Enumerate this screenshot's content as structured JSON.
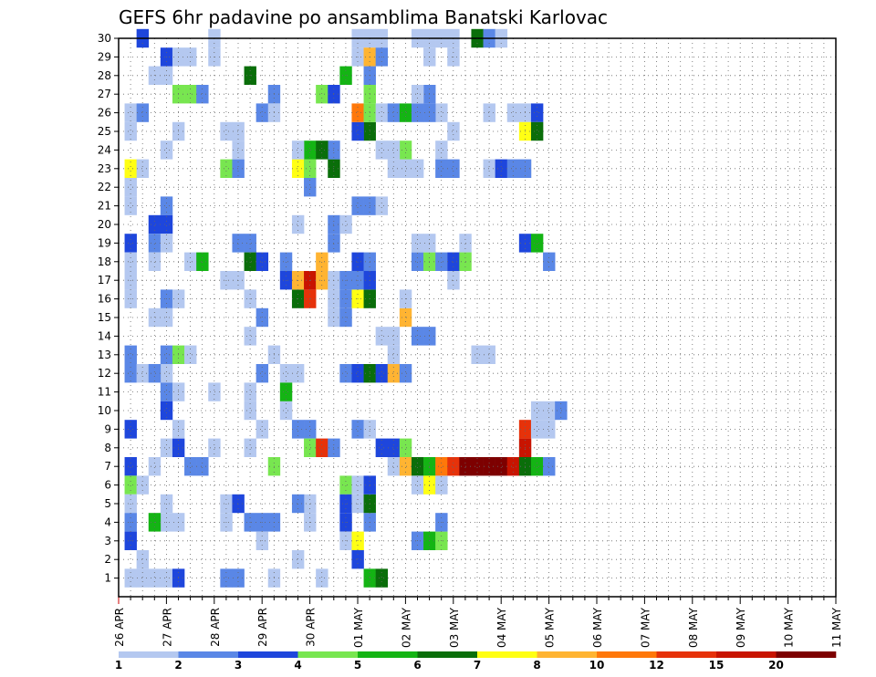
{
  "chart_data": {
    "type": "heatmap",
    "title": "GEFS 6hr padavine po ansamblima Banatski Karlovac",
    "xlabel": "",
    "ylabel": "",
    "x_tick_labels": [
      "26 APR",
      "27 APR",
      "28 APR",
      "29 APR",
      "30 APR",
      "01 MAY",
      "02 MAY",
      "03 MAY",
      "04 MAY",
      "05 MAY",
      "06 MAY",
      "07 MAY",
      "08 MAY",
      "09 MAY",
      "10 MAY",
      "11 MAY"
    ],
    "x_steps_per_day": 4,
    "x_total_steps": 60,
    "y_members": [
      1,
      2,
      3,
      4,
      5,
      6,
      7,
      8,
      9,
      10,
      11,
      12,
      13,
      14,
      15,
      16,
      17,
      18,
      19,
      20,
      21,
      22,
      23,
      24,
      25,
      26,
      27,
      28,
      29,
      30
    ],
    "grid": true,
    "colorbar": {
      "levels": [
        1,
        2,
        3,
        4,
        5,
        6,
        7,
        8,
        10,
        12,
        15,
        20
      ],
      "labels": [
        "1",
        "2",
        "3",
        "4",
        "5",
        "6",
        "7",
        "8",
        "10",
        "12",
        "15",
        "20"
      ],
      "colors": [
        "#b4c8f0",
        "#5a87e6",
        "#1e46dc",
        "#78e650",
        "#14b414",
        "#0a6e0a",
        "#ffff14",
        "#ffb432",
        "#ff780a",
        "#e6320a",
        "#c81400",
        "#7d0000"
      ],
      "placement": "bottom"
    },
    "cells": [
      [
        2,
        1,
        0
      ],
      [
        2,
        30,
        2
      ],
      [
        1,
        25,
        0
      ],
      [
        1,
        26,
        0
      ],
      [
        2,
        26,
        1
      ],
      [
        1,
        21,
        0
      ],
      [
        1,
        22,
        0
      ],
      [
        1,
        23,
        6
      ],
      [
        2,
        23,
        0
      ],
      [
        1,
        19,
        2
      ],
      [
        1,
        18,
        0
      ],
      [
        1,
        17,
        0
      ],
      [
        1,
        16,
        0
      ],
      [
        1,
        13,
        1
      ],
      [
        1,
        12,
        1
      ],
      [
        2,
        12,
        0
      ],
      [
        1,
        9,
        2
      ],
      [
        1,
        7,
        2
      ],
      [
        1,
        6,
        3
      ],
      [
        2,
        6,
        0
      ],
      [
        1,
        5,
        0
      ],
      [
        1,
        4,
        1
      ],
      [
        1,
        3,
        2
      ],
      [
        2,
        2,
        0
      ],
      [
        1,
        1,
        0
      ],
      [
        3,
        1,
        0
      ],
      [
        3,
        28,
        0
      ],
      [
        4,
        28,
        0
      ],
      [
        4,
        29,
        2
      ],
      [
        5,
        29,
        0
      ],
      [
        6,
        29,
        0
      ],
      [
        4,
        24,
        0
      ],
      [
        4,
        21,
        1
      ],
      [
        3,
        20,
        2
      ],
      [
        4,
        20,
        2
      ],
      [
        3,
        19,
        1
      ],
      [
        4,
        19,
        0
      ],
      [
        3,
        18,
        0
      ],
      [
        3,
        15,
        0
      ],
      [
        4,
        15,
        0
      ],
      [
        4,
        16,
        1
      ],
      [
        5,
        16,
        0
      ],
      [
        4,
        13,
        1
      ],
      [
        5,
        13,
        3
      ],
      [
        4,
        12,
        0
      ],
      [
        3,
        12,
        1
      ],
      [
        4,
        11,
        1
      ],
      [
        5,
        11,
        0
      ],
      [
        4,
        10,
        2
      ],
      [
        4,
        8,
        0
      ],
      [
        5,
        8,
        2
      ],
      [
        3,
        7,
        0
      ],
      [
        4,
        4,
        0
      ],
      [
        3,
        4,
        4
      ],
      [
        4,
        5,
        0
      ],
      [
        5,
        4,
        0
      ],
      [
        4,
        1,
        0
      ],
      [
        5,
        1,
        2
      ],
      [
        5,
        27,
        3
      ],
      [
        6,
        27,
        3
      ],
      [
        7,
        27,
        1
      ],
      [
        5,
        25,
        0
      ],
      [
        6,
        18,
        0
      ],
      [
        7,
        18,
        4
      ],
      [
        5,
        9,
        0
      ],
      [
        6,
        7,
        1
      ],
      [
        7,
        7,
        1
      ],
      [
        6,
        13,
        0
      ],
      [
        8,
        30,
        0
      ],
      [
        8,
        29,
        0
      ],
      [
        9,
        25,
        0
      ],
      [
        10,
        25,
        0
      ],
      [
        9,
        17,
        0
      ],
      [
        10,
        17,
        0
      ],
      [
        8,
        11,
        0
      ],
      [
        9,
        5,
        0
      ],
      [
        10,
        5,
        2
      ],
      [
        9,
        4,
        0
      ],
      [
        9,
        1,
        1
      ],
      [
        10,
        1,
        1
      ],
      [
        8,
        8,
        0
      ],
      [
        9,
        23,
        3
      ],
      [
        10,
        23,
        1
      ],
      [
        11,
        28,
        5
      ],
      [
        10,
        24,
        0
      ],
      [
        10,
        19,
        1
      ],
      [
        11,
        19,
        1
      ],
      [
        11,
        18,
        5
      ],
      [
        12,
        18,
        2
      ],
      [
        11,
        16,
        0
      ],
      [
        12,
        15,
        1
      ],
      [
        11,
        14,
        0
      ],
      [
        11,
        4,
        1
      ],
      [
        12,
        4,
        1
      ],
      [
        13,
        4,
        1
      ],
      [
        12,
        3,
        0
      ],
      [
        13,
        13,
        0
      ],
      [
        12,
        12,
        1
      ],
      [
        11,
        11,
        0
      ],
      [
        11,
        10,
        0
      ],
      [
        12,
        9,
        0
      ],
      [
        11,
        8,
        0
      ],
      [
        13,
        7,
        3
      ],
      [
        12,
        26,
        1
      ],
      [
        13,
        27,
        1
      ],
      [
        13,
        26,
        0
      ],
      [
        13,
        1,
        0
      ],
      [
        14,
        17,
        2
      ],
      [
        14,
        18,
        1
      ],
      [
        15,
        16,
        5
      ],
      [
        15,
        17,
        7
      ],
      [
        16,
        16,
        9
      ],
      [
        16,
        17,
        10
      ],
      [
        17,
        17,
        7
      ],
      [
        15,
        23,
        6
      ],
      [
        16,
        23,
        3
      ],
      [
        16,
        24,
        4
      ],
      [
        15,
        24,
        0
      ],
      [
        16,
        22,
        1
      ],
      [
        15,
        20,
        0
      ],
      [
        14,
        10,
        0
      ],
      [
        14,
        12,
        0
      ],
      [
        15,
        12,
        0
      ],
      [
        14,
        11,
        4
      ],
      [
        15,
        9,
        1
      ],
      [
        16,
        9,
        1
      ],
      [
        16,
        8,
        3
      ],
      [
        16,
        5,
        0
      ],
      [
        15,
        5,
        1
      ],
      [
        16,
        4,
        0
      ],
      [
        15,
        2,
        0
      ],
      [
        17,
        8,
        9
      ],
      [
        18,
        8,
        1
      ],
      [
        17,
        18,
        7
      ],
      [
        18,
        20,
        1
      ],
      [
        18,
        19,
        1
      ],
      [
        19,
        20,
        0
      ],
      [
        18,
        17,
        0
      ],
      [
        19,
        17,
        1
      ],
      [
        18,
        16,
        0
      ],
      [
        19,
        16,
        1
      ],
      [
        18,
        15,
        0
      ],
      [
        19,
        15,
        1
      ],
      [
        18,
        23,
        5
      ],
      [
        18,
        24,
        1
      ],
      [
        17,
        24,
        5
      ],
      [
        17,
        27,
        3
      ],
      [
        18,
        27,
        2
      ],
      [
        19,
        28,
        4
      ],
      [
        17,
        1,
        0
      ],
      [
        20,
        16,
        6
      ],
      [
        21,
        16,
        5
      ],
      [
        20,
        17,
        1
      ],
      [
        21,
        17,
        2
      ],
      [
        20,
        18,
        2
      ],
      [
        21,
        18,
        1
      ],
      [
        20,
        21,
        1
      ],
      [
        21,
        21,
        1
      ],
      [
        22,
        21,
        0
      ],
      [
        21,
        25,
        5
      ],
      [
        20,
        25,
        2
      ],
      [
        19,
        6,
        3
      ],
      [
        20,
        6,
        0
      ],
      [
        19,
        5,
        2
      ],
      [
        20,
        5,
        0
      ],
      [
        19,
        4,
        2
      ],
      [
        19,
        3,
        0
      ],
      [
        20,
        3,
        6
      ],
      [
        20,
        2,
        2
      ],
      [
        21,
        1,
        4
      ],
      [
        21,
        4,
        1
      ],
      [
        21,
        5,
        5
      ],
      [
        21,
        6,
        2
      ],
      [
        19,
        12,
        1
      ],
      [
        20,
        12,
        2
      ],
      [
        21,
        12,
        5
      ],
      [
        22,
        12,
        2
      ],
      [
        23,
        12,
        7
      ],
      [
        24,
        12,
        1
      ],
      [
        20,
        9,
        1
      ],
      [
        21,
        9,
        0
      ],
      [
        20,
        30,
        0
      ],
      [
        21,
        30,
        0
      ],
      [
        22,
        30,
        0
      ],
      [
        20,
        29,
        0
      ],
      [
        21,
        29,
        7
      ],
      [
        22,
        29,
        1
      ],
      [
        21,
        28,
        1
      ],
      [
        21,
        27,
        3
      ],
      [
        20,
        26,
        8
      ],
      [
        21,
        26,
        3
      ],
      [
        22,
        26,
        0
      ],
      [
        23,
        26,
        1
      ],
      [
        24,
        26,
        4
      ],
      [
        25,
        26,
        1
      ],
      [
        23,
        8,
        2
      ],
      [
        22,
        8,
        2
      ],
      [
        23,
        7,
        0
      ],
      [
        23,
        14,
        0
      ],
      [
        22,
        14,
        0
      ],
      [
        23,
        13,
        0
      ],
      [
        24,
        15,
        7
      ],
      [
        24,
        16,
        0
      ],
      [
        24,
        23,
        0
      ],
      [
        23,
        23,
        0
      ],
      [
        25,
        23,
        0
      ],
      [
        24,
        24,
        3
      ],
      [
        23,
        24,
        0
      ],
      [
        22,
        24,
        0
      ],
      [
        22,
        1,
        5
      ],
      [
        24,
        8,
        3
      ],
      [
        24,
        7,
        7
      ],
      [
        25,
        7,
        5
      ],
      [
        26,
        7,
        4
      ],
      [
        25,
        6,
        0
      ],
      [
        26,
        6,
        6
      ],
      [
        27,
        6,
        0
      ],
      [
        25,
        3,
        1
      ],
      [
        26,
        3,
        4
      ],
      [
        27,
        3,
        3
      ],
      [
        27,
        4,
        1
      ],
      [
        25,
        14,
        1
      ],
      [
        26,
        14,
        1
      ],
      [
        27,
        23,
        1
      ],
      [
        28,
        23,
        1
      ],
      [
        27,
        26,
        0
      ],
      [
        26,
        26,
        1
      ],
      [
        26,
        27,
        1
      ],
      [
        25,
        27,
        0
      ],
      [
        25,
        18,
        1
      ],
      [
        26,
        18,
        3
      ],
      [
        27,
        18,
        1
      ],
      [
        28,
        18,
        0
      ],
      [
        26,
        19,
        0
      ],
      [
        25,
        19,
        0
      ],
      [
        29,
        19,
        0
      ],
      [
        28,
        29,
        0
      ],
      [
        28,
        30,
        0
      ],
      [
        28,
        18,
        2
      ],
      [
        29,
        18,
        3
      ],
      [
        28,
        17,
        0
      ],
      [
        27,
        7,
        8
      ],
      [
        28,
        7,
        9
      ],
      [
        29,
        7,
        11
      ],
      [
        30,
        7,
        11
      ],
      [
        31,
        7,
        11
      ],
      [
        32,
        7,
        11
      ],
      [
        33,
        7,
        10
      ],
      [
        34,
        7,
        5
      ],
      [
        35,
        7,
        4
      ],
      [
        36,
        7,
        1
      ],
      [
        34,
        8,
        10
      ],
      [
        34,
        9,
        9
      ],
      [
        35,
        9,
        0
      ],
      [
        36,
        9,
        0
      ],
      [
        35,
        10,
        0
      ],
      [
        36,
        10,
        0
      ],
      [
        37,
        10,
        1
      ],
      [
        34,
        26,
        0
      ],
      [
        35,
        26,
        2
      ],
      [
        34,
        25,
        6
      ],
      [
        35,
        25,
        5
      ],
      [
        33,
        26,
        0
      ],
      [
        31,
        23,
        0
      ],
      [
        32,
        23,
        2
      ],
      [
        33,
        23,
        1
      ],
      [
        34,
        23,
        1
      ],
      [
        36,
        18,
        1
      ],
      [
        34,
        19,
        2
      ],
      [
        35,
        19,
        4
      ],
      [
        26,
        30,
        0
      ],
      [
        27,
        30,
        0
      ],
      [
        25,
        30,
        0
      ],
      [
        26,
        29,
        0
      ],
      [
        28,
        25,
        0
      ],
      [
        27,
        24,
        0
      ],
      [
        30,
        30,
        5
      ],
      [
        31,
        30,
        1
      ],
      [
        32,
        30,
        0
      ],
      [
        31,
        26,
        0
      ],
      [
        30,
        13,
        0
      ],
      [
        31,
        13,
        0
      ]
    ]
  }
}
